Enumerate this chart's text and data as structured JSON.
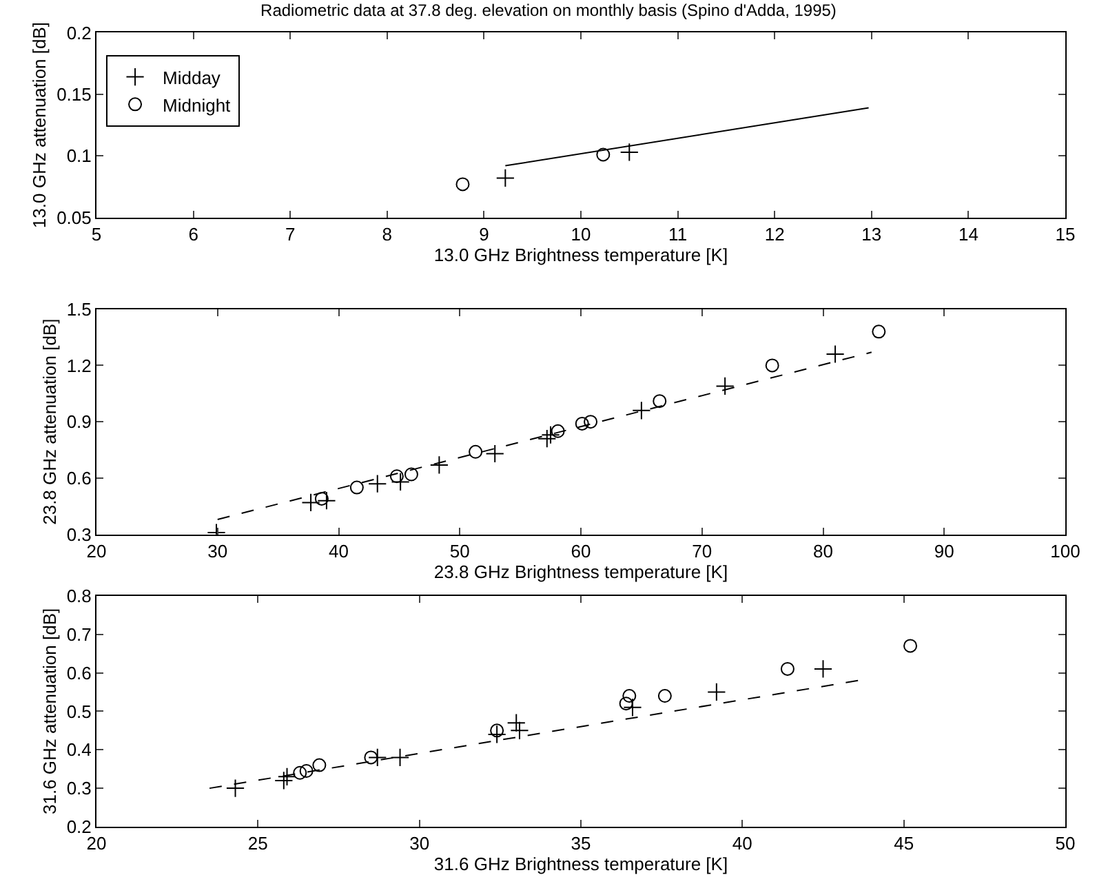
{
  "chart_data": [
    {
      "type": "scatter",
      "title": "Radiometric data at 37.8 deg. elevation on monthly basis (Spino d'Adda, 1995)",
      "xlabel": "13.0 GHz Brightness temperature [K]",
      "ylabel": "13.0 GHz attenuation [dB]",
      "xlim": [
        5,
        15
      ],
      "xticks": [
        5,
        6,
        7,
        8,
        9,
        10,
        11,
        12,
        13,
        14,
        15
      ],
      "ylim": [
        0.05,
        0.2
      ],
      "yticks": [
        0.05,
        0.1,
        0.15,
        0.2
      ],
      "legend": "top left",
      "series": [
        {
          "name": "Midday",
          "color": "#000000",
          "marker": "cross",
          "x": [
            9.22,
            10.5
          ],
          "values": [
            0.082,
            0.103
          ]
        },
        {
          "name": "Midnight",
          "color": "#000000",
          "marker": "circle",
          "x": [
            8.78,
            10.23
          ],
          "values": [
            0.077,
            0.101
          ]
        },
        {
          "type": "line",
          "color": "#000000",
          "line_style": "solid",
          "x": [
            9.22,
            12.97
          ],
          "values": [
            0.092,
            0.139
          ]
        }
      ]
    },
    {
      "type": "scatter",
      "xlabel": "23.8 GHz Brightness temperature [K]",
      "ylabel": "23.8 GHz attenuation [dB]",
      "xlim": [
        20,
        100
      ],
      "xticks": [
        20,
        30,
        40,
        50,
        60,
        70,
        80,
        90,
        100
      ],
      "ylim": [
        0.3,
        1.5
      ],
      "yticks": [
        0.3,
        0.6,
        0.9,
        1.2,
        1.5
      ],
      "series": [
        {
          "color": "#000000",
          "marker": "cross",
          "x": [
            29.9,
            37.7,
            39,
            43.2,
            45.1,
            48.3,
            52.9,
            57.2,
            57.5,
            65,
            71.9,
            81
          ],
          "values": [
            0.31,
            0.47,
            0.48,
            0.57,
            0.58,
            0.67,
            0.73,
            0.81,
            0.83,
            0.96,
            1.09,
            1.26
          ]
        },
        {
          "color": "#000000",
          "marker": "circle",
          "x": [
            38.6,
            41.5,
            44.8,
            46,
            51.3,
            58.1,
            60.1,
            60.8,
            66.5,
            75.8,
            84.6
          ],
          "values": [
            0.49,
            0.55,
            0.61,
            0.62,
            0.74,
            0.85,
            0.89,
            0.9,
            1.01,
            1.2,
            1.38
          ]
        },
        {
          "type": "line",
          "color": "#000000",
          "line_style": "dashed",
          "x": [
            30,
            84
          ],
          "values": [
            0.38,
            1.27
          ]
        }
      ]
    },
    {
      "type": "scatter",
      "xlabel": "31.6 GHz Brightness temperature [K]",
      "ylabel": "31.6 GHz attenuation [dB]",
      "xlim": [
        20,
        50
      ],
      "xticks": [
        20,
        25,
        30,
        35,
        40,
        45,
        50
      ],
      "ylim": [
        0.2,
        0.8
      ],
      "yticks": [
        0.2,
        0.3,
        0.4,
        0.5,
        0.6,
        0.7,
        0.8
      ],
      "series": [
        {
          "color": "#000000",
          "marker": "cross",
          "x": [
            24.3,
            25.8,
            25.9,
            28.7,
            29.4,
            32.4,
            33,
            33.1,
            36.6,
            39.2,
            42.5
          ],
          "values": [
            0.3,
            0.32,
            0.33,
            0.38,
            0.38,
            0.44,
            0.47,
            0.45,
            0.51,
            0.55,
            0.61
          ]
        },
        {
          "color": "#000000",
          "marker": "circle",
          "x": [
            26.3,
            26.5,
            26.9,
            28.5,
            32.4,
            36.4,
            36.5,
            37.6,
            41.4,
            45.2
          ],
          "values": [
            0.34,
            0.345,
            0.36,
            0.38,
            0.45,
            0.52,
            0.54,
            0.54,
            0.61,
            0.67
          ]
        },
        {
          "type": "line",
          "color": "#000000",
          "line_style": "dashed",
          "x": [
            23.5,
            43.6
          ],
          "values": [
            0.3,
            0.58
          ]
        }
      ]
    }
  ]
}
